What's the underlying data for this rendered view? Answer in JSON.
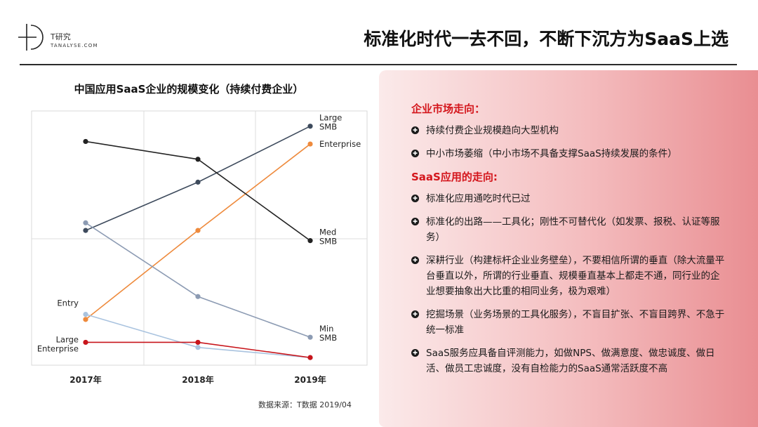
{
  "header": {
    "logo_name": "T研究",
    "logo_sub": "TANALYSE.COM",
    "title": "标准化时代一去不回，不断下沉方为SaaS上选"
  },
  "source": "数据来源：T数据 2019/04",
  "panel": {
    "section1": {
      "heading": "企业市场走向：",
      "bullets": [
        "持续付费企业规模趋向大型机构",
        "中小市场萎缩（中小市场不具备支撑SaaS持续发展的条件）"
      ]
    },
    "section2": {
      "heading": "SaaS应用的走向:",
      "bullets": [
        "标准化应用通吃时代已过",
        "标准化的出路——工具化；刚性不可替代化（如发票、报税、认证等服务）",
        "深耕行业（构建标杆企业业务壁垒），不要相信所谓的垂直（除大流量平台垂直以外，所谓的行业垂直、规模垂直基本上都走不通，同行业的企业想要抽象出大比重的相同业务，极为艰难）",
        "挖掘场景（业务场景的工具化服务），不盲目扩张、不盲目跨界、不急于统一标准",
        "SaaS服务应具备自评测能力，如做NPS、做满意度、做忠诚度、做日活、做员工忠诚度，没有自检能力的SaaS通常活跃度不高"
      ]
    }
  },
  "chart_data": {
    "type": "line",
    "title": "中国应用SaaS企业的规模变化（持续付费企业）",
    "categories": [
      "2017年",
      "2018年",
      "2019年"
    ],
    "grid": true,
    "series": [
      {
        "name": "Large SMB",
        "label_left": "",
        "label_right": [
          "Large",
          "SMB"
        ],
        "color": "#3d4a5c",
        "values": [
          0.53,
          0.72,
          0.94
        ]
      },
      {
        "name": "Enterprise",
        "label_left": "",
        "label_right": [
          "Enterprise"
        ],
        "color": "#ee8a3c",
        "values": [
          0.18,
          0.53,
          0.87
        ]
      },
      {
        "name": "Med SMB",
        "label_left": "",
        "label_right": [
          "Med",
          "SMB"
        ],
        "color": "#222222",
        "values": [
          0.88,
          0.81,
          0.49
        ]
      },
      {
        "name": "Min SMB",
        "label_left": "",
        "label_right": [
          "Min",
          "SMB"
        ],
        "color": "#8c9bb3",
        "values": [
          0.56,
          0.27,
          0.11
        ]
      },
      {
        "name": "Entry",
        "label_left": [
          "Entry"
        ],
        "label_right": "",
        "color": "#a9c3df",
        "values": [
          0.2,
          0.07,
          0.03
        ]
      },
      {
        "name": "Large Enterprise",
        "label_left": [
          "Large",
          "Enterprise"
        ],
        "label_right": "",
        "color": "#c8151b",
        "values": [
          0.09,
          0.09,
          0.03
        ]
      }
    ]
  }
}
